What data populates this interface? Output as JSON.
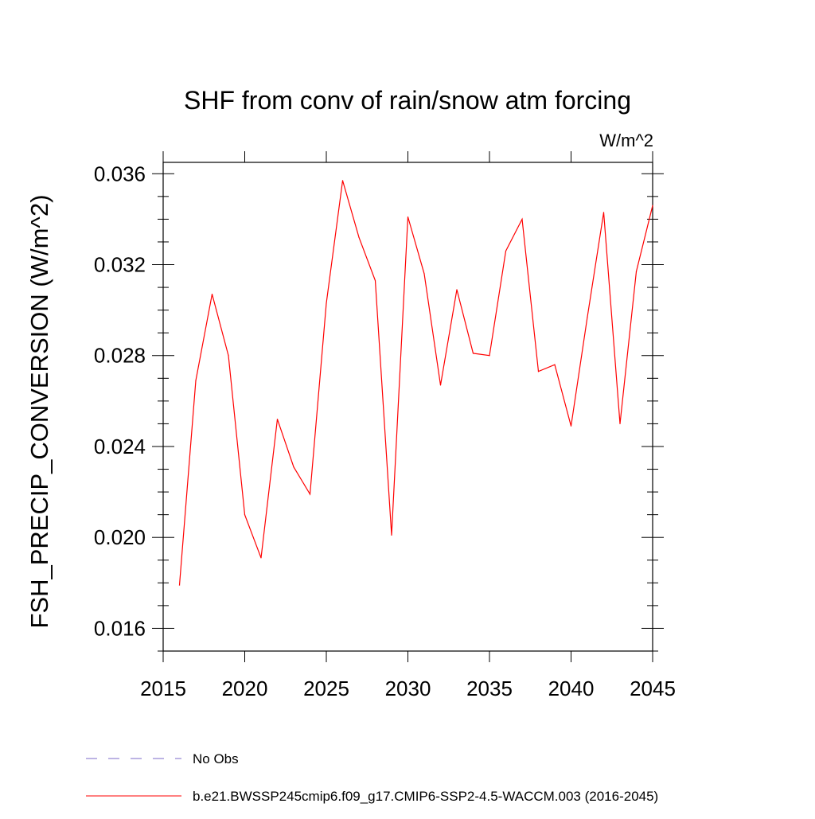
{
  "chart_data": {
    "type": "line",
    "title": "SHF from conv of rain/snow atm forcing",
    "units_label": "W/m^2",
    "ylabel": "FSH_PRECIP_CONVERSION  (W/m^2)",
    "xlabel": "",
    "xlim": [
      2015,
      2045
    ],
    "ylim": [
      0.015,
      0.0365
    ],
    "x_ticks": [
      2015,
      2020,
      2025,
      2030,
      2035,
      2040,
      2045
    ],
    "y_ticks": [
      0.016,
      0.02,
      0.024,
      0.028,
      0.032,
      0.036
    ],
    "y_tick_labels": [
      "0.016",
      "0.020",
      "0.024",
      "0.028",
      "0.032",
      "0.036"
    ],
    "grid": false,
    "legend_placement": "bottom",
    "series": [
      {
        "name": "b.e21.BWSSP245cmip6.f09_g17.CMIP6-SSP2-4.5-WACCM.003 (2016-2045)",
        "color": "#ff0000",
        "style": "solid",
        "x": [
          2016,
          2017,
          2018,
          2019,
          2020,
          2021,
          2022,
          2023,
          2024,
          2025,
          2026,
          2027,
          2028,
          2029,
          2030,
          2031,
          2032,
          2033,
          2034,
          2035,
          2036,
          2037,
          2038,
          2039,
          2040,
          2041,
          2042,
          2043,
          2044,
          2045
        ],
        "values": [
          0.0179,
          0.0269,
          0.0307,
          0.028,
          0.021,
          0.0191,
          0.0252,
          0.0231,
          0.0219,
          0.0303,
          0.0357,
          0.0332,
          0.0313,
          0.0201,
          0.0341,
          0.0316,
          0.0267,
          0.0309,
          0.0281,
          0.028,
          0.0326,
          0.034,
          0.0273,
          0.0276,
          0.0249,
          0.0297,
          0.0343,
          0.025,
          0.0317,
          0.0346
        ]
      }
    ],
    "legend": [
      {
        "label": "No Obs",
        "color": "#7b68c8",
        "style": "dashed"
      },
      {
        "label": "b.e21.BWSSP245cmip6.f09_g17.CMIP6-SSP2-4.5-WACCM.003 (2016-2045)",
        "color": "#ff0000",
        "style": "solid"
      }
    ]
  }
}
